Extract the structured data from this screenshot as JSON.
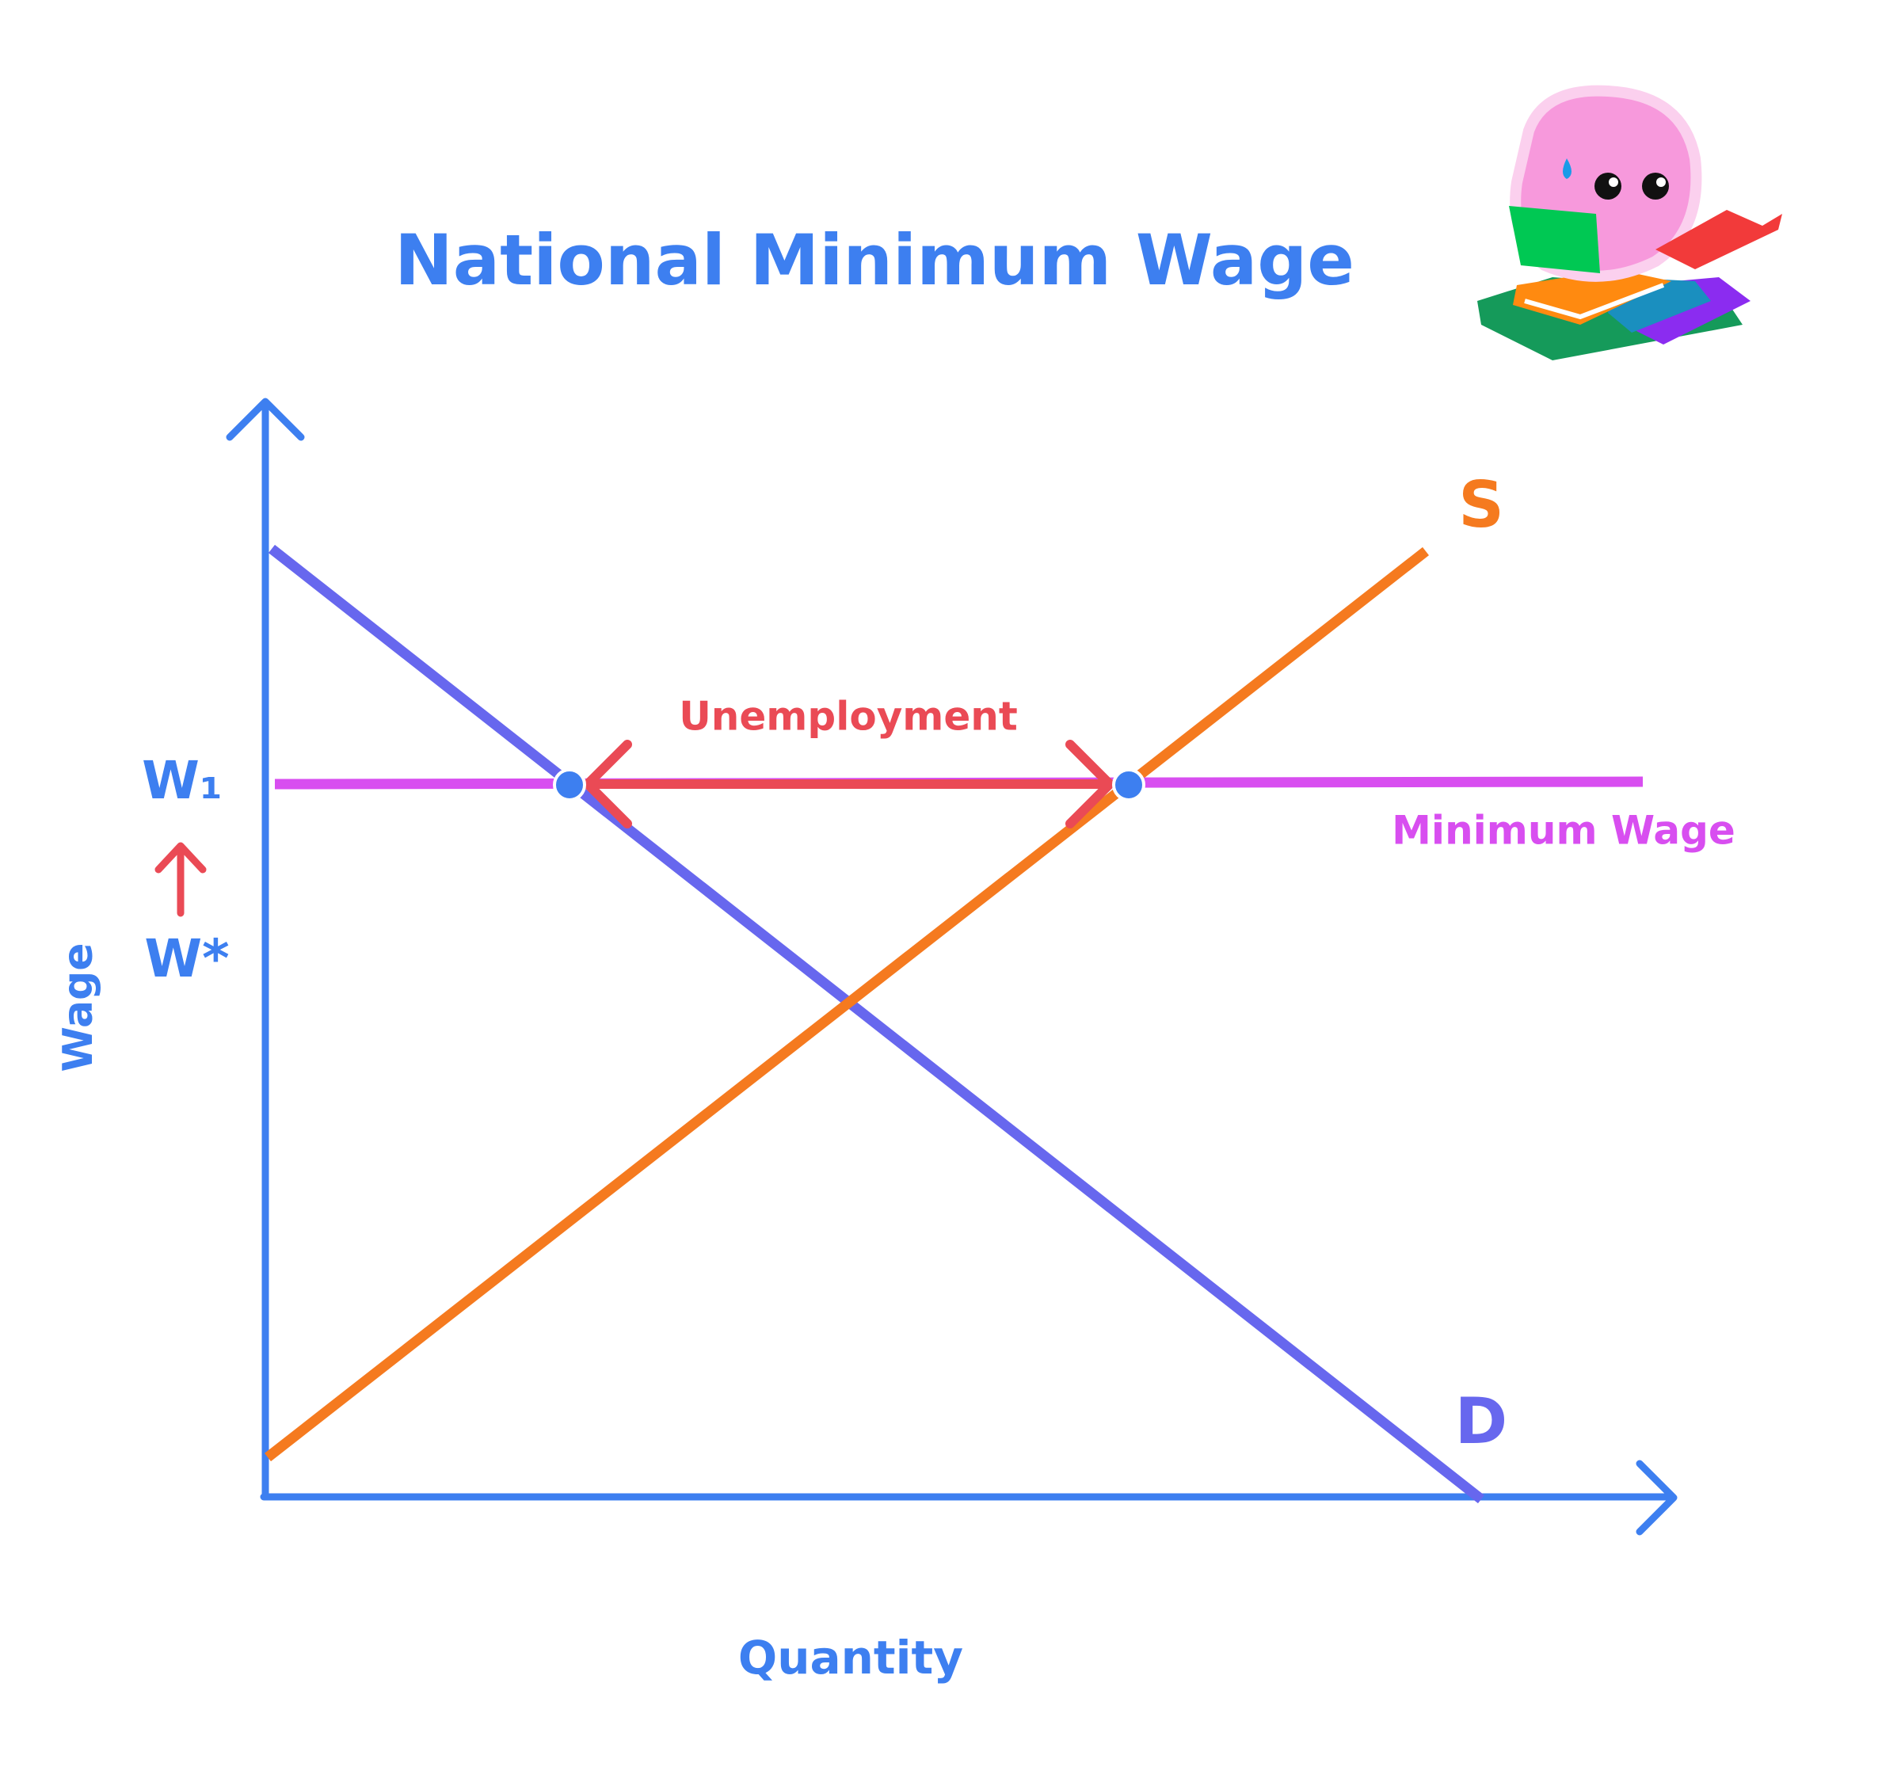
{
  "title": "National Minimum Wage",
  "axes": {
    "y_label": "Wage",
    "x_label": "Quantity"
  },
  "curves": {
    "supply": "S",
    "demand": "D",
    "minimum_wage": "Minimum Wage"
  },
  "annotations": {
    "unemployment": "Unemployment",
    "w1": "W₁",
    "w_star": "W*"
  }
}
